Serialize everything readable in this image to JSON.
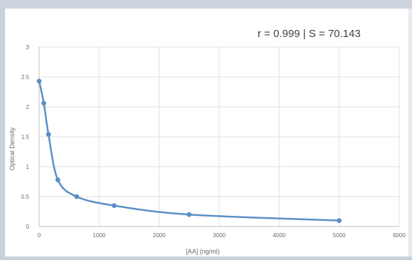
{
  "chart_data": {
    "type": "line",
    "title": "",
    "annotation": "r = 0.999 | S = 70.143",
    "xlabel": "[AA] (ng/ml)",
    "ylabel": "Optical Density",
    "xlim": [
      0,
      6000
    ],
    "ylim": [
      0,
      3
    ],
    "xticks": [
      "0",
      "1000",
      "2000",
      "3000",
      "4000",
      "5000",
      "6000"
    ],
    "yticks": [
      "0",
      "0.5",
      "1",
      "1.5",
      "2",
      "2.5",
      "3"
    ],
    "grid": true,
    "legend": "none",
    "smooth": true,
    "colors": {
      "series": "#5b8fc7",
      "grid": "#e2e2e2",
      "axis": "#bfbfbf",
      "background": "#ffffff"
    },
    "series": [
      {
        "x": [
          0,
          78,
          156,
          312,
          625,
          1250,
          2500,
          5000
        ],
        "y": [
          2.43,
          2.06,
          1.54,
          0.78,
          0.5,
          0.35,
          0.2,
          0.1
        ]
      }
    ]
  }
}
